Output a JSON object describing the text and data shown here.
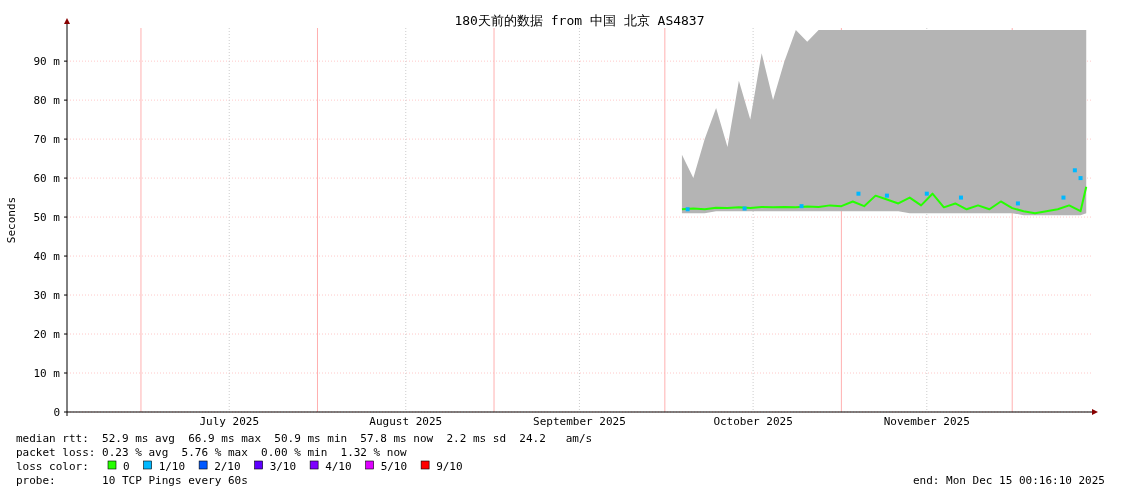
{
  "chart_data": {
    "type": "line",
    "title": "180天前的数据 from 中国 北京 AS4837",
    "ylabel": "Seconds",
    "legend_title": "loss color:",
    "legend": "bottom",
    "grid": true,
    "xlim": [
      "2025-06-18T00:16",
      "2025-12-15T00:16"
    ],
    "xticks": [
      {
        "value": "2025-07-16T12:00",
        "label": "July 2025"
      },
      {
        "value": "2025-08-16T12:00",
        "label": "August 2025"
      },
      {
        "value": "2025-09-16",
        "label": "September 2025"
      },
      {
        "value": "2025-10-16T12:00",
        "label": "October 2025"
      },
      {
        "value": "2025-11-16",
        "label": "November 2025"
      }
    ],
    "ylim": [
      0,
      98.5
    ],
    "yticks": [
      0,
      {
        "value": 10,
        "label": "10 m"
      },
      {
        "value": 20,
        "label": "20 m"
      },
      {
        "value": 30,
        "label": "30 m"
      },
      {
        "value": 40,
        "label": "40 m"
      },
      {
        "value": 50,
        "label": "50 m"
      },
      {
        "value": 60,
        "label": "60 m"
      },
      {
        "value": 70,
        "label": "70 m"
      },
      {
        "value": 80,
        "label": "80 m"
      },
      {
        "value": 90,
        "label": "90 m"
      }
    ],
    "ref_lines": [
      {
        "axis": "x",
        "value": "2025-07-01",
        "color": "#ffb0b0"
      },
      {
        "axis": "x",
        "value": "2025-08-01",
        "color": "#ffb0b0"
      },
      {
        "axis": "x",
        "value": "2025-09-01",
        "color": "#ffb0b0"
      },
      {
        "axis": "x",
        "value": "2025-10-01",
        "color": "#ffb0b0"
      },
      {
        "axis": "x",
        "value": "2025-11-01",
        "color": "#ffb0b0"
      },
      {
        "axis": "x",
        "value": "2025-12-01",
        "color": "#ffb0b0"
      }
    ],
    "series": [
      {
        "name": "0",
        "type": "line",
        "color": "#26ff00",
        "x": [
          "2025-10-04",
          "2025-10-06",
          "2025-10-08",
          "2025-10-10",
          "2025-10-12",
          "2025-10-14",
          "2025-10-16",
          "2025-10-18",
          "2025-10-20",
          "2025-10-22",
          "2025-10-24",
          "2025-10-26",
          "2025-10-28",
          "2025-10-30",
          "2025-11-01",
          "2025-11-03",
          "2025-11-05",
          "2025-11-07",
          "2025-11-09",
          "2025-11-11",
          "2025-11-13",
          "2025-11-15",
          "2025-11-17",
          "2025-11-19",
          "2025-11-21",
          "2025-11-23",
          "2025-11-25",
          "2025-11-27",
          "2025-11-29",
          "2025-12-01",
          "2025-12-03",
          "2025-12-05",
          "2025-12-07",
          "2025-12-09",
          "2025-12-11",
          "2025-12-13",
          "2025-12-14"
        ],
        "values": [
          52.0,
          52.2,
          52.0,
          52.4,
          52.3,
          52.5,
          52.3,
          52.6,
          52.5,
          52.6,
          52.5,
          52.7,
          52.6,
          53.0,
          52.8,
          54.0,
          52.8,
          55.5,
          54.5,
          53.5,
          55.0,
          53.0,
          56.0,
          52.5,
          53.5,
          52.0,
          53.0,
          52.0,
          54.0,
          52.3,
          51.5,
          51.0,
          51.5,
          52.0,
          53.0,
          51.5,
          57.8
        ],
        "lower": [
          51,
          51,
          51,
          51.5,
          51.5,
          51.5,
          51.5,
          51.5,
          51.5,
          51.5,
          51.5,
          51.5,
          51.5,
          51.5,
          51.5,
          51.5,
          51.5,
          51.5,
          51.5,
          51.5,
          51,
          51,
          51,
          51,
          51,
          51,
          51,
          51,
          51,
          51,
          50.5,
          50.5,
          50.5,
          50.5,
          50.5,
          50.5,
          51
        ],
        "upper": [
          66,
          60,
          70,
          78,
          68,
          85,
          75,
          92,
          80,
          90,
          98,
          95,
          98,
          98,
          98,
          98,
          98,
          98,
          98,
          98,
          98,
          98,
          98,
          98,
          98,
          98,
          98,
          98,
          98,
          98,
          98,
          98,
          98,
          98,
          98,
          98,
          98
        ]
      },
      {
        "name": "1/10",
        "type": "scatter",
        "color": "#00b8ff",
        "x": [
          "2025-10-05",
          "2025-10-15",
          "2025-10-25",
          "2025-11-04",
          "2025-11-09",
          "2025-11-16",
          "2025-11-22",
          "2025-12-02",
          "2025-12-10",
          "2025-12-12",
          "2025-12-13"
        ],
        "values": [
          52.0,
          52.2,
          52.8,
          56.0,
          55.5,
          56.0,
          55.0,
          53.5,
          55.0,
          62.0,
          60.0
        ]
      },
      {
        "name": "2/10",
        "type": "scatter",
        "color": "#0059ff"
      },
      {
        "name": "3/10",
        "type": "scatter",
        "color": "#5e00ff"
      },
      {
        "name": "4/10",
        "type": "scatter",
        "color": "#7e00ff"
      },
      {
        "name": "5/10",
        "type": "scatter",
        "color": "#dd00ff"
      },
      {
        "name": "9/10",
        "type": "scatter",
        "color": "#ff0000"
      }
    ],
    "annotations": [
      "median rtt:  52.9 ms avg  66.9 ms max  50.9 ms min  57.8 ms now  2.2 ms sd  24.2   am/s",
      "packet loss: 0.23 % avg  5.76 % max  0.00 % min  1.32 % now",
      "probe:       10 TCP Pings every 60s",
      "end: Mon Dec 15 00:16:10 2025"
    ]
  }
}
